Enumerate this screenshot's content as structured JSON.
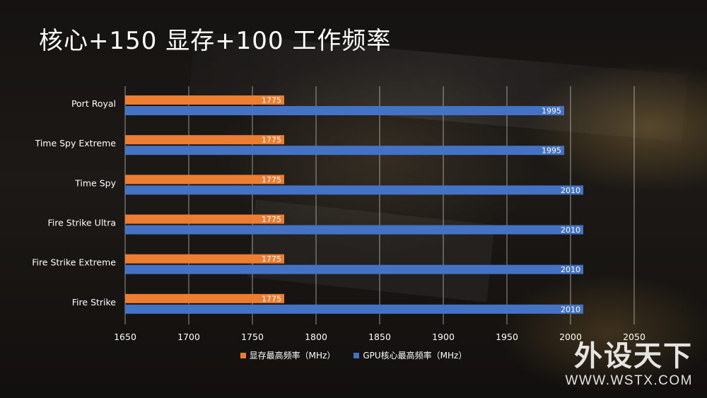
{
  "title": "核心+150 显存+100 工作频率",
  "chart_data": {
    "type": "bar",
    "orientation": "horizontal",
    "categories": [
      "Port Royal",
      "Time Spy Extreme",
      "Time Spy",
      "Fire Strike Ultra",
      "Fire Strike Extreme",
      "Fire Strike"
    ],
    "series": [
      {
        "name": "显存最高频率（MHz）",
        "values": [
          1775,
          1775,
          1775,
          1775,
          1775,
          1775
        ],
        "color": "#ED7D31"
      },
      {
        "name": "GPU核心最高频率（MHz）",
        "values": [
          1995,
          1995,
          2010,
          2010,
          2010,
          2010
        ],
        "color": "#4472C4"
      }
    ],
    "xlim": [
      1650,
      2050
    ],
    "xticks": [
      1650,
      1700,
      1750,
      1800,
      1850,
      1900,
      1950,
      2000,
      2050
    ],
    "grid": true,
    "legend_position": "bottom"
  },
  "watermark": {
    "cn": "外设天下",
    "en": "WWW.WSTX.COM"
  }
}
